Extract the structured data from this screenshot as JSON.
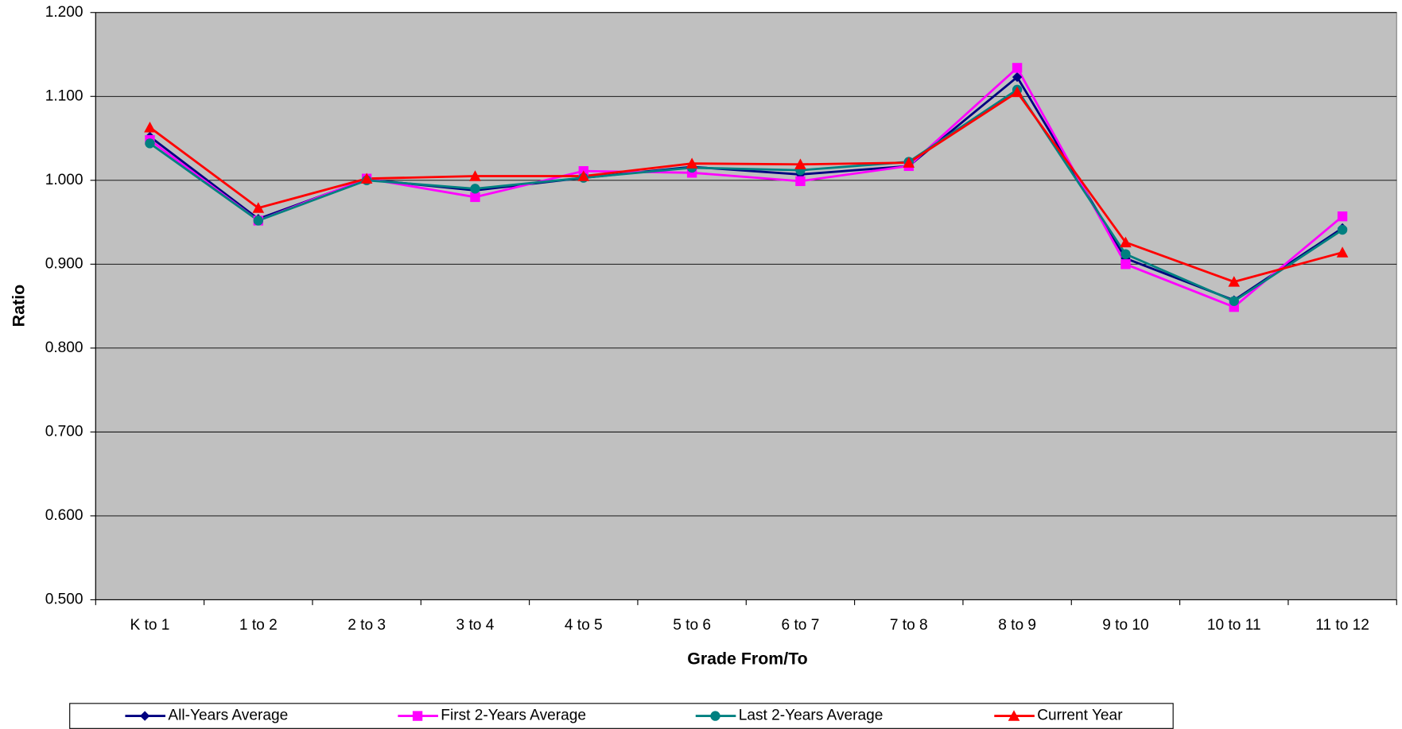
{
  "chart_data": {
    "type": "line",
    "ylabel": "Ratio",
    "xlabel": "Grade From/To",
    "categories": [
      "K to 1",
      "1 to 2",
      "2 to 3",
      "3 to 4",
      "4 to 5",
      "5 to 6",
      "6 to 7",
      "7 to 8",
      "8 to 9",
      "9 to 10",
      "10 to 11",
      "11 to 12"
    ],
    "series": [
      {
        "name": "All-Years Average",
        "color": "#000080",
        "marker": "diamond",
        "values": [
          1.052,
          0.954,
          1.001,
          0.988,
          1.003,
          1.016,
          1.007,
          1.017,
          1.123,
          0.907,
          0.857,
          0.943
        ]
      },
      {
        "name": "First 2-Years Average",
        "color": "#ff00ff",
        "marker": "square",
        "values": [
          1.048,
          0.952,
          1.002,
          0.98,
          1.011,
          1.009,
          0.999,
          1.017,
          1.134,
          0.9,
          0.849,
          0.957
        ]
      },
      {
        "name": "Last 2-Years Average",
        "color": "#008080",
        "marker": "circle",
        "values": [
          1.044,
          0.952,
          1.0,
          0.99,
          1.003,
          1.015,
          1.012,
          1.022,
          1.108,
          0.912,
          0.856,
          0.941
        ]
      },
      {
        "name": "Current Year",
        "color": "#ff0000",
        "marker": "triangle",
        "values": [
          1.063,
          0.967,
          1.002,
          1.005,
          1.005,
          1.02,
          1.019,
          1.021,
          1.105,
          0.926,
          0.879,
          0.914
        ]
      }
    ],
    "ylim": [
      0.5,
      1.2
    ],
    "yticks": [
      {
        "value": 0.5,
        "label": "0.500"
      },
      {
        "value": 0.6,
        "label": "0.600"
      },
      {
        "value": 0.7,
        "label": "0.700"
      },
      {
        "value": 0.8,
        "label": "0.800"
      },
      {
        "value": 0.9,
        "label": "0.900"
      },
      {
        "value": 1.0,
        "label": "1.000"
      },
      {
        "value": 1.1,
        "label": "1.100"
      },
      {
        "value": 1.2,
        "label": "1.200"
      }
    ],
    "grid": true,
    "plot_background": "#c0c0c0",
    "legend": "bottom"
  }
}
